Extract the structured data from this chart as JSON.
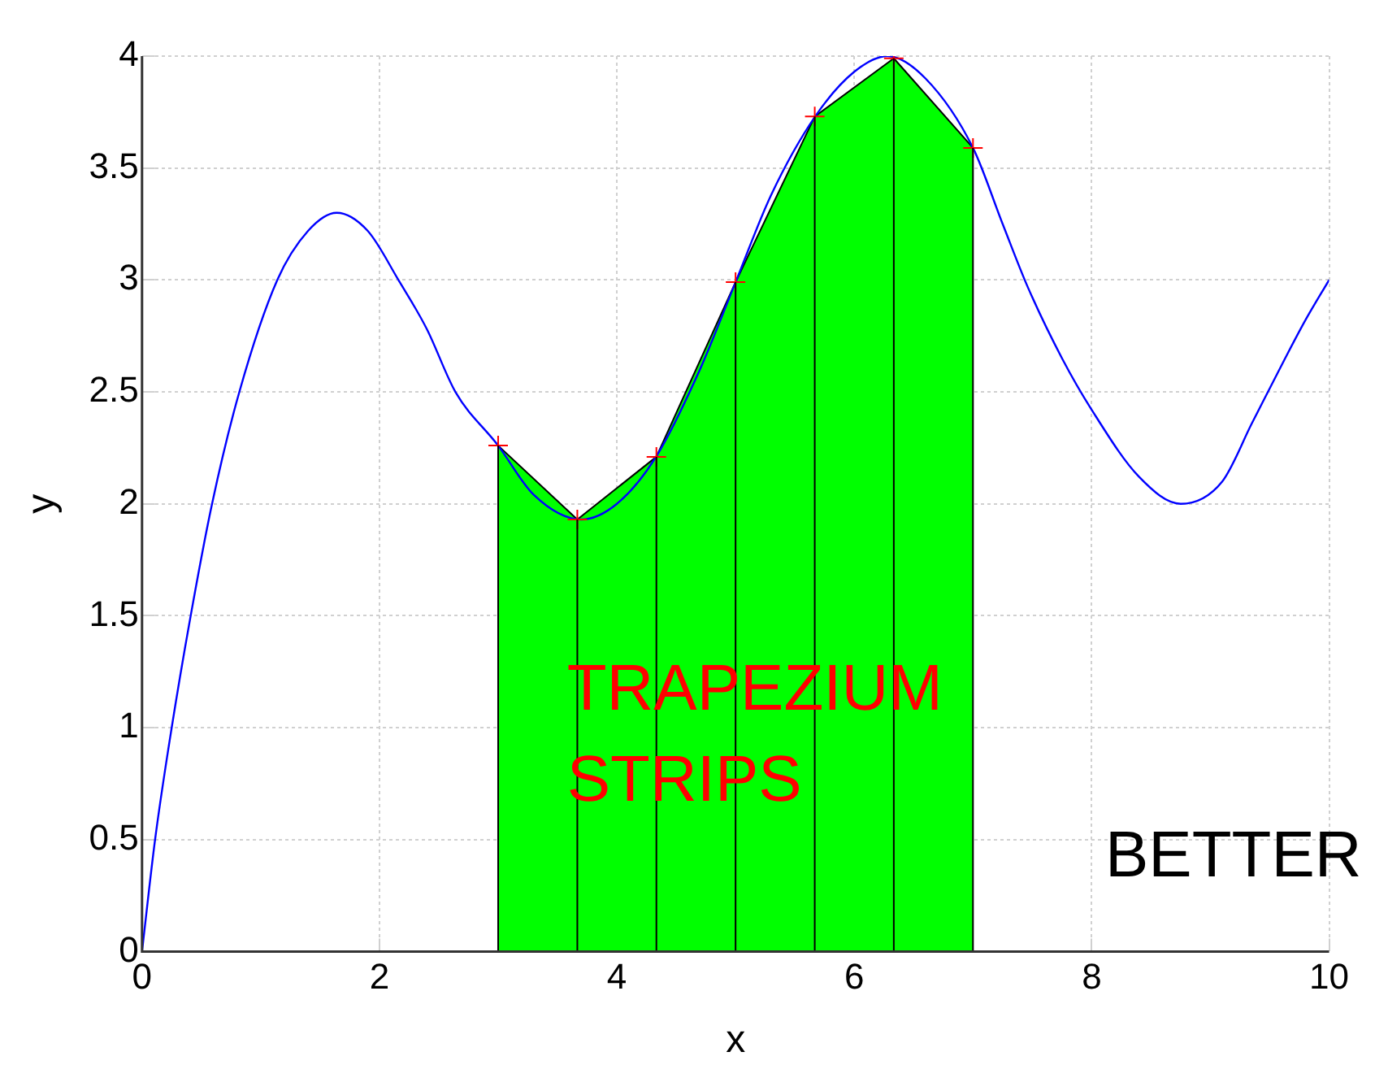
{
  "chart_data": {
    "type": "line",
    "xlabel": "x",
    "ylabel": "y",
    "xlim": [
      0,
      10
    ],
    "xticks": [
      0,
      2,
      4,
      6,
      8,
      10
    ],
    "ylim": [
      0,
      4
    ],
    "yticks": [
      0,
      0.5,
      1,
      1.5,
      2,
      2.5,
      3,
      3.5,
      4
    ],
    "grid": true,
    "legend": false,
    "annotations": [
      "TRAPEZIUM STRIPS",
      "BETTER"
    ],
    "series": [
      {
        "color": "#0000ff",
        "marker": "none",
        "x": [
          0,
          0.11,
          0.25,
          0.41,
          0.59,
          0.82,
          1.14,
          1.4,
          1.64,
          1.9,
          2.16,
          2.4,
          2.64,
          3,
          3.3,
          3.7,
          4,
          4.33,
          4.7,
          5,
          5.3,
          5.67,
          6,
          6.28,
          6.6,
          7,
          7.25,
          7.46,
          7.75,
          8,
          8.4,
          8.75,
          9.1,
          9.35,
          9.62,
          9.8,
          10
        ],
        "values": [
          0,
          0.5,
          1,
          1.5,
          2,
          2.5,
          3,
          3.22,
          3.3,
          3.22,
          3,
          2.78,
          2.5,
          2.26,
          2.04,
          1.93,
          2,
          2.21,
          2.6,
          2.99,
          3.38,
          3.73,
          3.93,
          4,
          3.9,
          3.59,
          3.25,
          2.97,
          2.65,
          2.42,
          2.12,
          2,
          2.1,
          2.36,
          2.64,
          2.82,
          3
        ]
      },
      {
        "type": "area",
        "color": "#00ff00",
        "marker": "none",
        "x": [
          3,
          3.667,
          4.333,
          5,
          5.667,
          6.333,
          7
        ],
        "values": [
          2.26,
          1.93,
          2.21,
          2.99,
          3.73,
          3.99,
          3.59
        ]
      },
      {
        "type": "lollipop",
        "color": "#ff0000",
        "marker": "cross",
        "x": [
          3,
          3.667,
          4.333,
          5,
          5.667,
          6.333,
          7
        ],
        "values": [
          2.26,
          1.93,
          2.21,
          2.99,
          3.73,
          3.99,
          3.59
        ]
      }
    ]
  }
}
